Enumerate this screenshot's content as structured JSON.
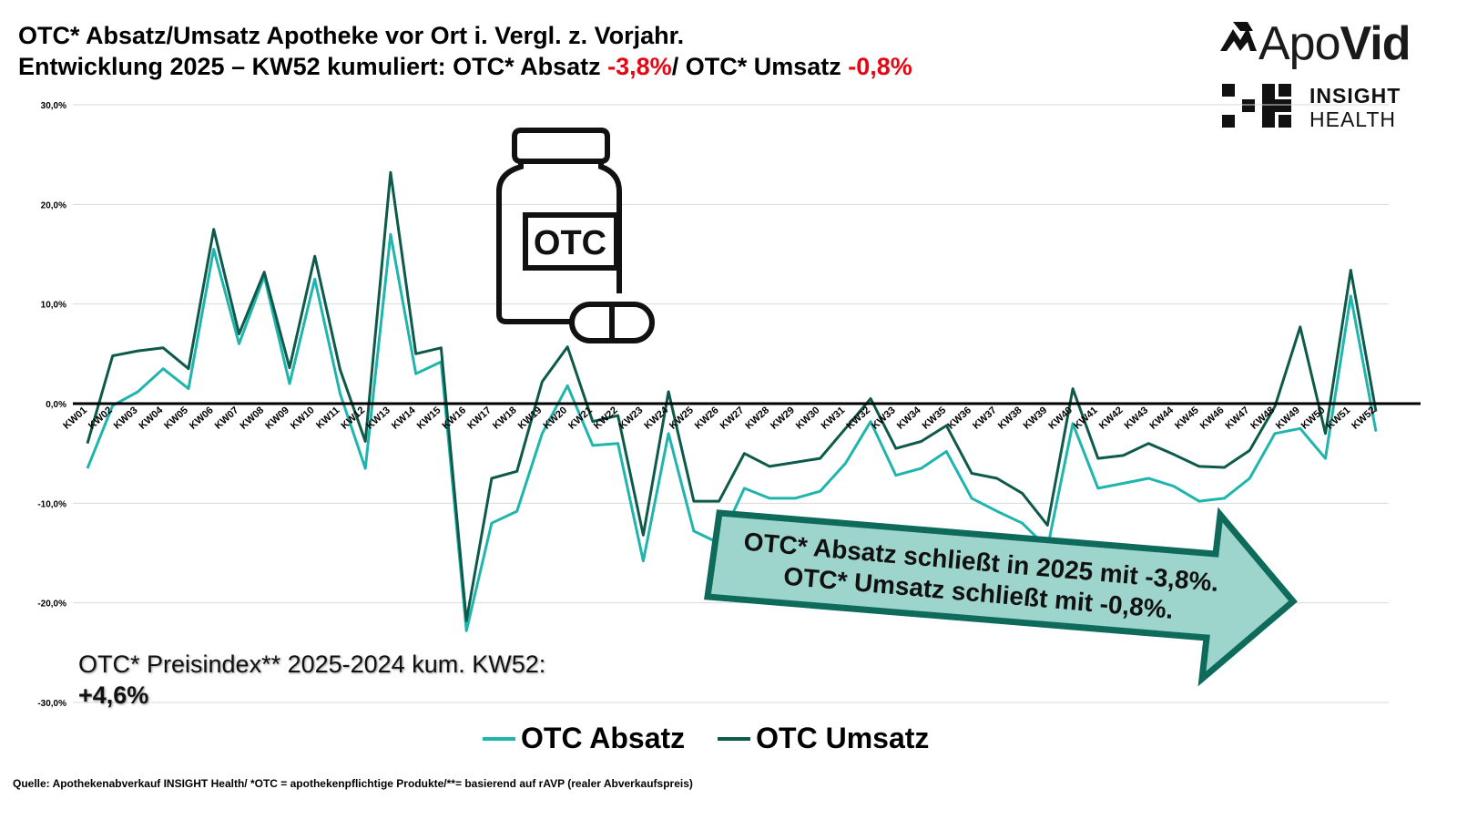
{
  "header": {
    "title_line1": "OTC* Absatz/Umsatz Apotheke vor Ort i. Vergl. z. Vorjahr.",
    "title_line2_a": "Entwicklung 2025 – KW52 kumuliert: OTC* Absatz ",
    "title_line2_b": "-3,8%",
    "title_line2_c": "/ OTC* Umsatz ",
    "title_line2_d": "-0,8%"
  },
  "logos": {
    "apovid_a": "Apo",
    "apovid_b": "Vid",
    "insight_line1": "INSIGHT",
    "insight_line2": "HEALTH"
  },
  "icon": {
    "name": "otc-medicine-bottle-icon",
    "label": "OTC"
  },
  "callout": {
    "line1": "OTC* Absatz schließt in 2025 mit -3,8%.",
    "line2": "OTC* Umsatz schließt mit -0,8%."
  },
  "price_index": {
    "label": "OTC* Preisindex** 2025-2024 kum. KW52:",
    "value": "+4,6%"
  },
  "source": "Quelle: Apothekenabverkauf INSIGHT Health/ *OTC = apothekenpflichtige Produkte/**= basierend auf rAVP (realer Abverkaufspreis)",
  "colors": {
    "absatz": "#1fb5ad",
    "umsatz": "#0d5a4a",
    "arrow_fill": "#9dd4cb",
    "arrow_stroke": "#0e6b5c",
    "highlight_red": "#e30613"
  },
  "chart_data": {
    "type": "line",
    "y_ticks": [
      "30,0%",
      "20,0%",
      "10,0%",
      "0,0%",
      "-10,0%",
      "-20,0%",
      "-30,0%"
    ],
    "ylim": [
      -30,
      30
    ],
    "grid": true,
    "legend_position": "bottom",
    "categories": [
      "KW01",
      "KW02",
      "KW03",
      "KW04",
      "KW05",
      "KW06",
      "KW07",
      "KW08",
      "KW09",
      "KW10",
      "KW11",
      "KW12",
      "KW13",
      "KW14",
      "KW15",
      "KW16",
      "KW17",
      "KW18",
      "KW19",
      "KW20",
      "KW21",
      "KW22",
      "KW23",
      "KW24",
      "KW25",
      "KW26",
      "KW27",
      "KW28",
      "KW29",
      "KW30",
      "KW31",
      "KW32",
      "KW33",
      "KW34",
      "KW35",
      "KW36",
      "KW37",
      "KW38",
      "KW39",
      "KW40",
      "KW41",
      "KW42",
      "KW43",
      "KW44",
      "KW45",
      "KW46",
      "KW47",
      "KW48",
      "KW49",
      "KW50",
      "KW51",
      "KW52"
    ],
    "series": [
      {
        "name": "OTC Absatz",
        "values": [
          -6.5,
          -0.2,
          1.2,
          3.5,
          1.5,
          15.5,
          6.0,
          12.8,
          2.0,
          12.5,
          1.0,
          -6.5,
          17.0,
          3.0,
          4.2,
          -22.8,
          -12.0,
          -10.8,
          -3.0,
          1.8,
          -4.2,
          -4.0,
          -15.8,
          -3.0,
          -12.8,
          -14.0,
          -8.5,
          -9.5,
          -9.5,
          -8.8,
          -6.0,
          -1.8,
          -7.2,
          -6.5,
          -4.8,
          -9.5,
          -10.8,
          -12.0,
          -14.5,
          -2.0,
          -8.5,
          -8.0,
          -7.5,
          -8.3,
          -9.8,
          -9.5,
          -7.5,
          -3.0,
          -2.5,
          -5.5,
          10.8,
          -2.8
        ]
      },
      {
        "name": "OTC Umsatz",
        "values": [
          -4.0,
          4.8,
          5.3,
          5.6,
          3.5,
          17.5,
          7.0,
          13.2,
          3.6,
          14.8,
          3.4,
          -3.8,
          23.2,
          5.0,
          5.6,
          -21.8,
          -7.5,
          -6.8,
          2.2,
          5.7,
          -1.8,
          -1.2,
          -13.2,
          1.2,
          -9.8,
          -9.8,
          -5.0,
          -6.3,
          -5.9,
          -5.5,
          -2.5,
          0.5,
          -4.5,
          -3.8,
          -2.2,
          -7.0,
          -7.5,
          -9.0,
          -12.2,
          1.5,
          -5.5,
          -5.2,
          -4.0,
          -5.1,
          -6.3,
          -6.4,
          -4.7,
          -0.3,
          7.7,
          -3.0,
          13.4,
          -0.8
        ]
      }
    ]
  }
}
